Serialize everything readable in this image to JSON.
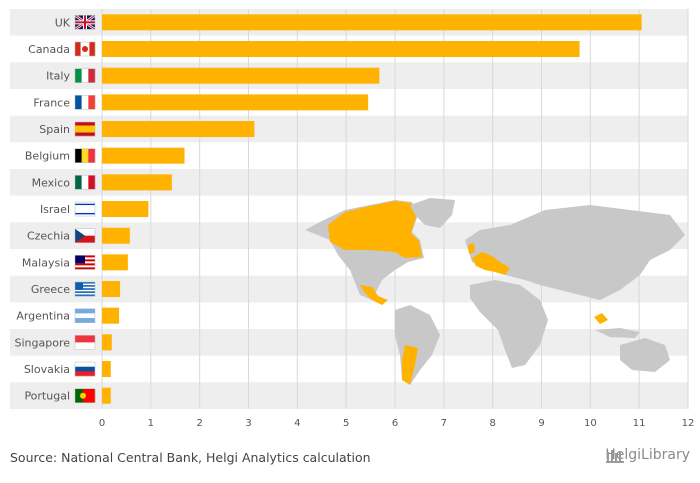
{
  "chart_data": {
    "type": "bar",
    "orientation": "horizontal",
    "categories": [
      "UK",
      "Canada",
      "Italy",
      "France",
      "Spain",
      "Belgium",
      "Mexico",
      "Israel",
      "Czechia",
      "Malaysia",
      "Greece",
      "Argentina",
      "Singapore",
      "Slovakia",
      "Portugal"
    ],
    "values": [
      11.05,
      9.78,
      5.68,
      5.45,
      3.12,
      1.69,
      1.43,
      0.95,
      0.57,
      0.53,
      0.37,
      0.35,
      0.2,
      0.18,
      0.18
    ],
    "xlim": [
      0,
      12
    ],
    "xticks": [
      "0",
      "1",
      "2",
      "3",
      "4",
      "5",
      "6",
      "7",
      "8",
      "9",
      "10",
      "11",
      "12"
    ],
    "bar_color": "#FFB300",
    "row_band_color": "#EEEEEE",
    "grid": true,
    "title": "",
    "xlabel": "",
    "ylabel": ""
  },
  "footer": {
    "source": "Source: National Central Bank, Helgi Analytics calculation",
    "brand": "HelgiLibrary"
  }
}
